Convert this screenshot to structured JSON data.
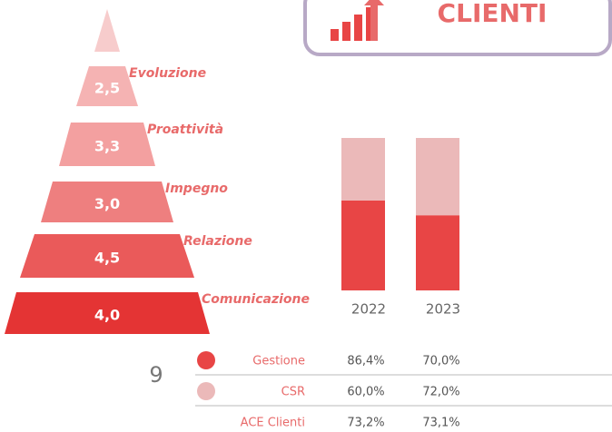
{
  "header": {
    "title": "CLIENTI"
  },
  "page_number": 9,
  "chart_data": [
    {
      "type": "pyramid",
      "categories": [
        "Evoluzione",
        "Proattività",
        "Impegno",
        "Relazione",
        "Comunicazione"
      ],
      "values": [
        2.5,
        3.3,
        3.0,
        4.5,
        4.0
      ],
      "value_labels": [
        "2,5",
        "3,3",
        "3,0",
        "4,5",
        "4,0"
      ],
      "colors": [
        "#f5b3b3",
        "#f3a0a0",
        "#ee7f7f",
        "#ea5a5a",
        "#e43434"
      ],
      "tip_color": "#f7cccc"
    },
    {
      "type": "bar",
      "stack": "percent",
      "categories": [
        "2022",
        "2023"
      ],
      "series": [
        {
          "name": "Gestione",
          "color": "#e84545",
          "values": [
            86.4,
            70.0
          ],
          "value_labels": [
            "86,4%",
            "70,0%"
          ]
        },
        {
          "name": "CSR",
          "color": "#ebb9b9",
          "values": [
            60.0,
            72.0
          ],
          "value_labels": [
            "60,0%",
            "72,0%"
          ]
        }
      ],
      "extra_rows": [
        {
          "name": "ACE Clienti",
          "values": [
            73.2,
            73.1
          ],
          "value_labels": [
            "73,2%",
            "73,1%"
          ]
        }
      ]
    }
  ]
}
